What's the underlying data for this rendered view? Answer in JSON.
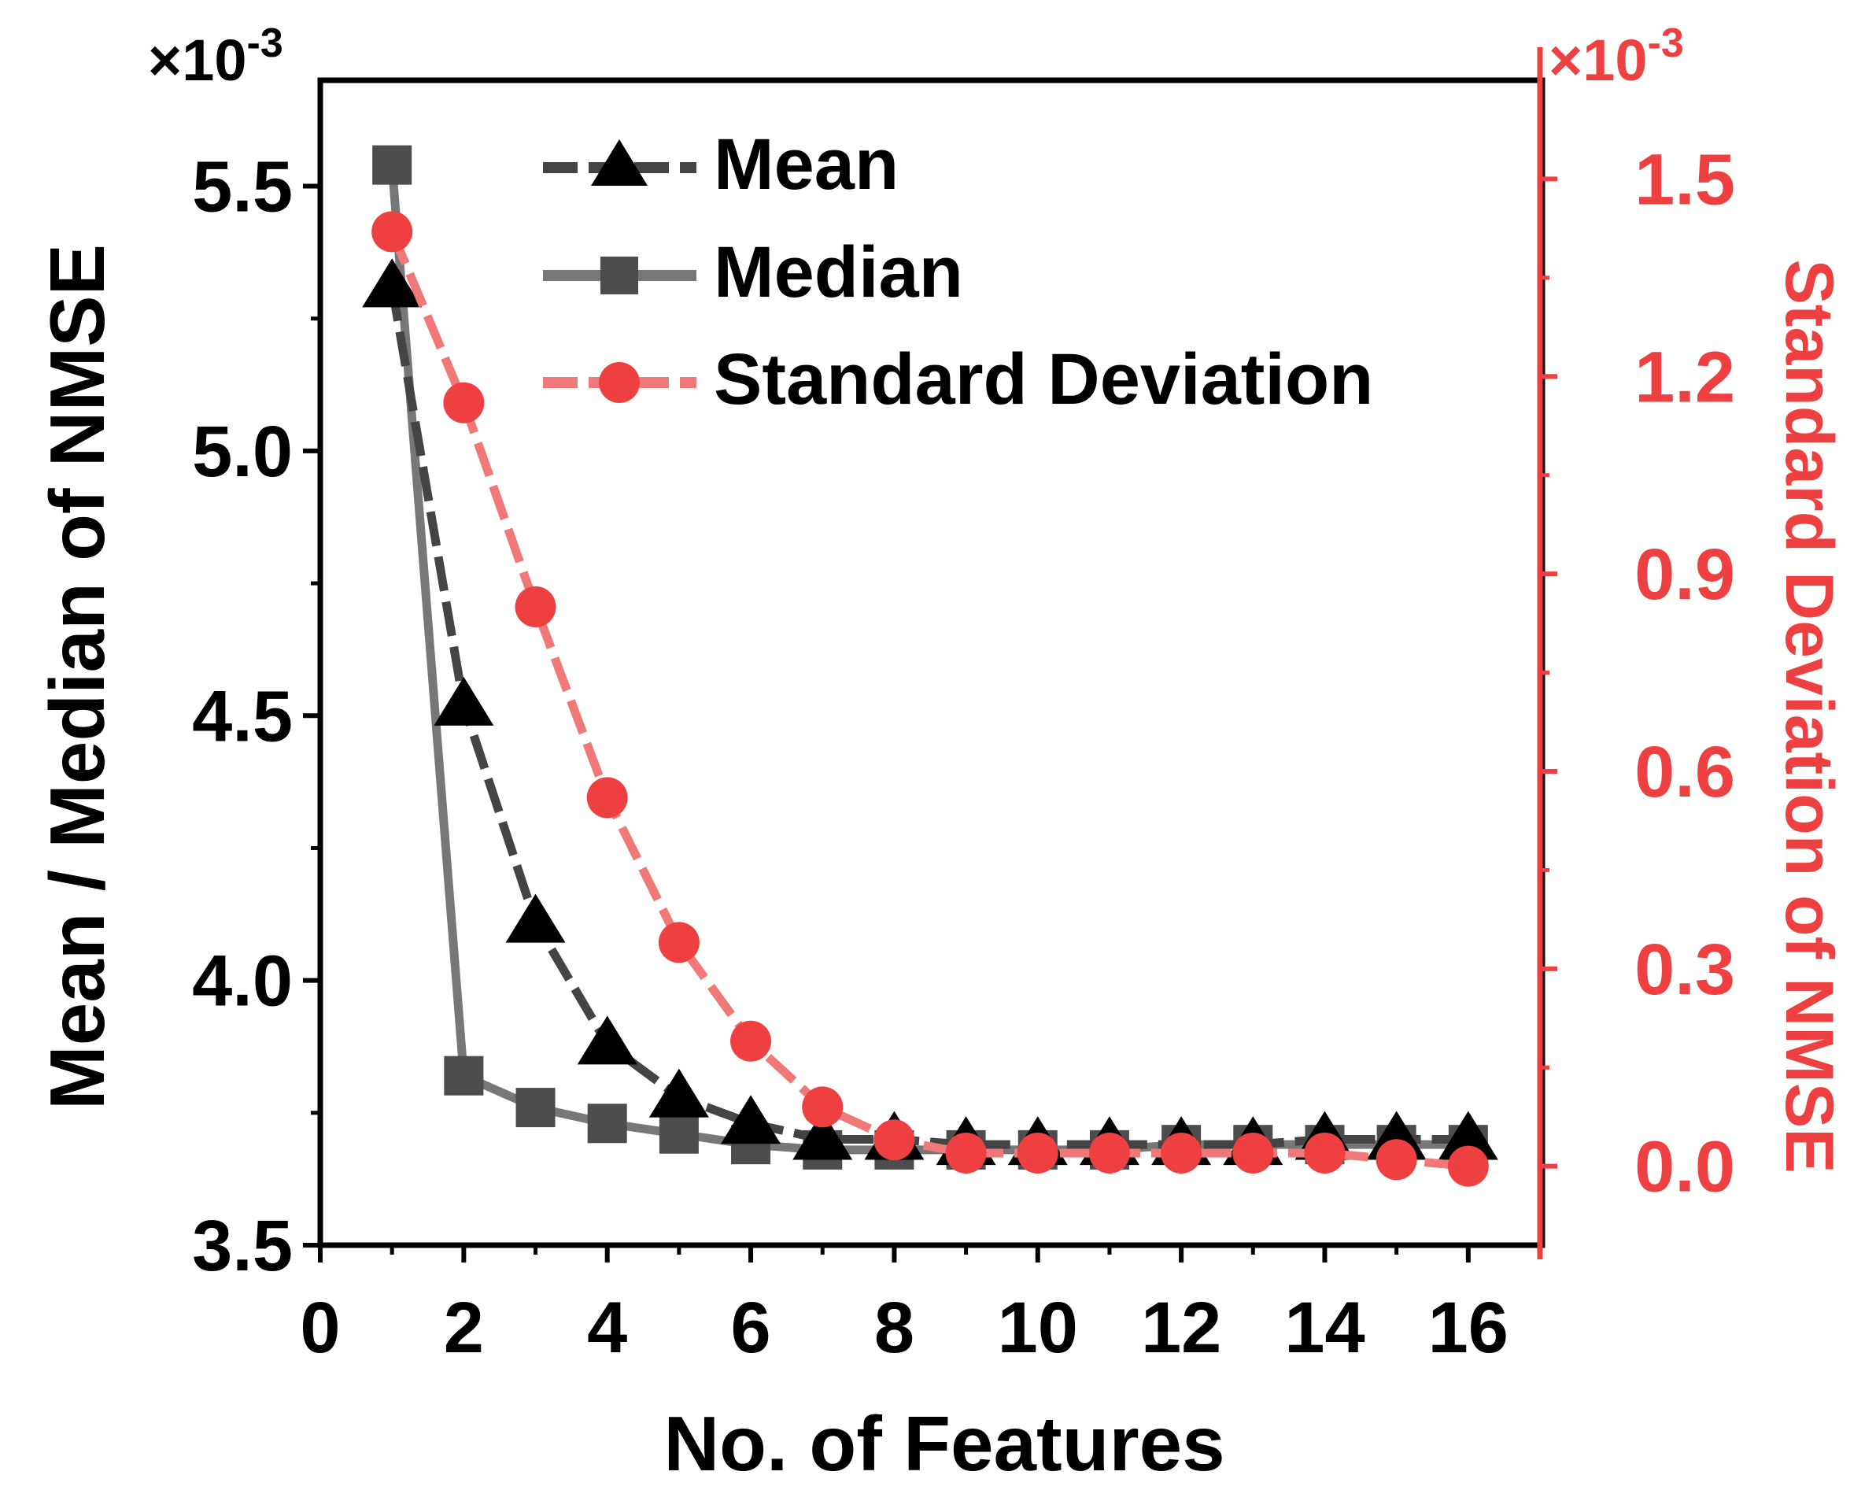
{
  "chart_data": {
    "type": "line",
    "xlabel": "No. of Features",
    "ylabel_left": "Mean / Median of NMSE",
    "ylabel_right": "Standard Deviation of NMSE",
    "left_multiplier": {
      "base": "×10",
      "exp": "-3"
    },
    "right_multiplier": {
      "base": "×10",
      "exp": "-3"
    },
    "xlim": [
      0,
      17
    ],
    "ylim_left": [
      3.5,
      5.7
    ],
    "ylim_right": [
      -0.12,
      1.65
    ],
    "x_ticks": [
      "0",
      "2",
      "4",
      "6",
      "8",
      "10",
      "12",
      "14",
      "16"
    ],
    "y_left_ticks": [
      "3.5",
      "4.0",
      "4.5",
      "5.0",
      "5.5"
    ],
    "y_right_ticks": [
      "0.0",
      "0.3",
      "0.6",
      "0.9",
      "1.2",
      "1.5"
    ],
    "legend_position": "top-right",
    "x": [
      1,
      2,
      3,
      4,
      5,
      6,
      7,
      8,
      9,
      10,
      11,
      12,
      13,
      14,
      15,
      16
    ],
    "series": [
      {
        "name": "Mean",
        "axis": "left",
        "marker": "triangle",
        "color": "#000000",
        "line_color": "#444444",
        "values": [
          5.31,
          4.52,
          4.11,
          3.88,
          3.78,
          3.73,
          3.7,
          3.7,
          3.69,
          3.69,
          3.69,
          3.69,
          3.69,
          3.7,
          3.7,
          3.7
        ]
      },
      {
        "name": "Median",
        "axis": "left",
        "marker": "square",
        "color": "#4d4d4d",
        "line_color": "#777777",
        "values": [
          5.54,
          3.82,
          3.76,
          3.73,
          3.71,
          3.69,
          3.68,
          3.68,
          3.68,
          3.68,
          3.68,
          3.69,
          3.69,
          3.69,
          3.69,
          3.69
        ]
      },
      {
        "name": "Standard Deviation",
        "axis": "right",
        "marker": "circle",
        "color": "#ee4040",
        "line_color": "#f07878",
        "values": [
          1.42,
          1.16,
          0.85,
          0.56,
          0.34,
          0.19,
          0.09,
          0.04,
          0.02,
          0.02,
          0.02,
          0.02,
          0.02,
          0.02,
          0.01,
          0.0
        ]
      }
    ],
    "accent_right": "#ee4040"
  }
}
